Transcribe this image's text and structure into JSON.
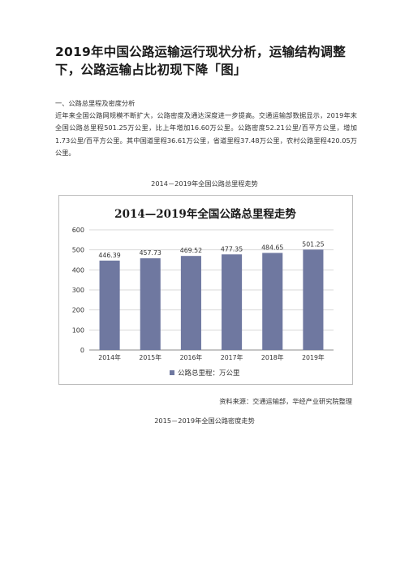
{
  "article": {
    "title": "2019年中国公路运输运行现状分析，运输结构调整下，公路运输占比初现下降「图」",
    "section_heading": "一、公路总里程及密度分析",
    "paragraph": "近年来全国公路网规模不断扩大，公路密度及通达深度进一步提高。交通运输部数据显示，2019年末全国公路总里程501.25万公里，比上年增加16.60万公里。公路密度52.21公里/百平方公里，增加1.73公里/百平方公里。其中国道里程36.61万公里，省道里程37.48万公里，农村公路里程420.05万公里。",
    "chart1_caption": "2014－2019年全国公路总里程走势",
    "source": "资料来源：交通运输部，华经产业研究院整理",
    "chart2_caption": "2015－2019年全国公路密度走势"
  },
  "chart_data": {
    "type": "bar",
    "title": "2014—2019年全国公路总里程走势",
    "categories": [
      "2014年",
      "2015年",
      "2016年",
      "2017年",
      "2018年",
      "2019年"
    ],
    "series": [
      {
        "name": "公路总里程：万公里",
        "values": [
          446.39,
          457.73,
          469.52,
          477.35,
          484.65,
          501.25
        ]
      }
    ],
    "data_labels": [
      "446.39",
      "457.73",
      "469.52",
      "477.35",
      "484.65",
      "501.25"
    ],
    "ylim": [
      0,
      600
    ],
    "yticks": [
      "0",
      "100",
      "200",
      "300",
      "400",
      "500",
      "600"
    ],
    "grid": true,
    "legend_position": "bottom",
    "bar_color": "#6f78a0"
  }
}
